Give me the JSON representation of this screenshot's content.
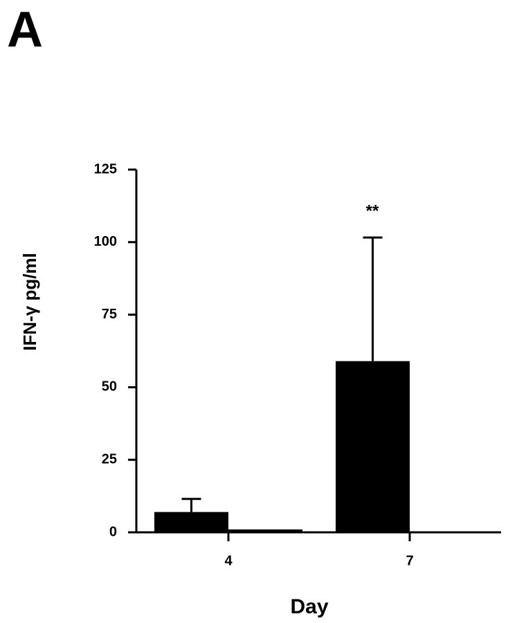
{
  "panel_label": "A",
  "chart_data": {
    "type": "bar",
    "y_label": "IFN-γ pg/ml",
    "x_label": "Day",
    "annotation": "**",
    "categories": [
      "4",
      "7"
    ],
    "series": [
      {
        "color": "#000000",
        "values": [
          7,
          59
        ],
        "errors": [
          4.5,
          42.6
        ]
      },
      {
        "color": "#000000",
        "values": [
          1,
          0
        ]
      }
    ],
    "ylim": [
      0,
      125
    ],
    "yticks": [
      0,
      25,
      50,
      75,
      100,
      125
    ],
    "grid": false
  }
}
